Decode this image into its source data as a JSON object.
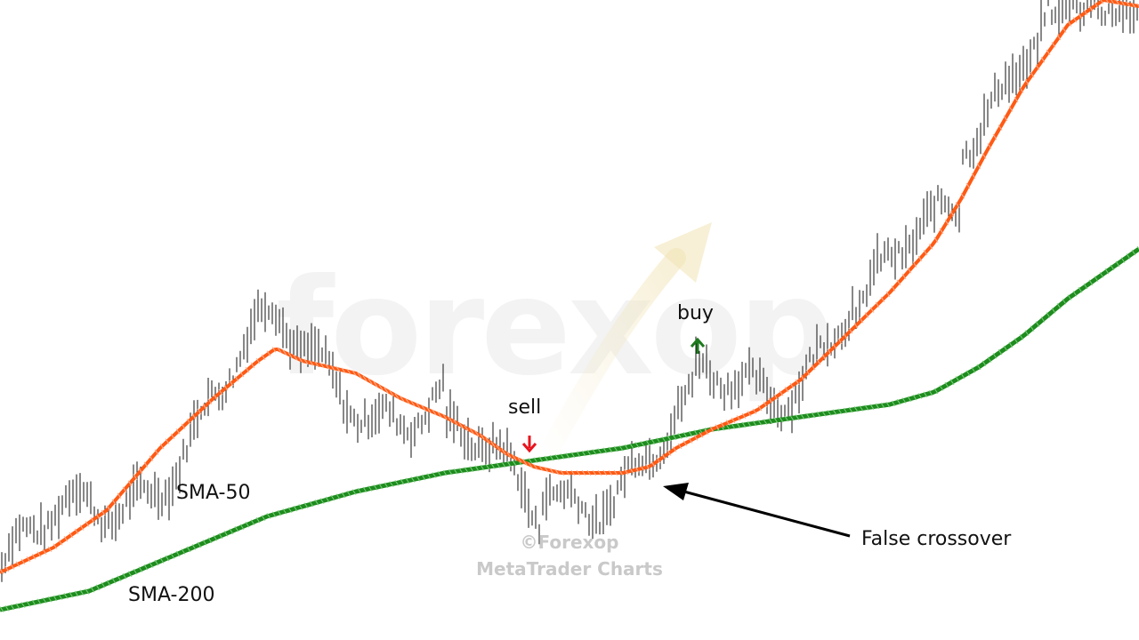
{
  "watermark": "forexop",
  "copyright": {
    "line1": "©Forexop",
    "line2": "MetaTrader Charts"
  },
  "labels": {
    "sma50": "SMA-50",
    "sma200": "SMA-200",
    "sell": "sell",
    "buy": "buy",
    "false_crossover": "False crossover"
  },
  "colors": {
    "sma50": "#ff5a14",
    "sma200": "#1e8c1e",
    "price": "#111111",
    "sell_arrow": "#e8141e",
    "buy_arrow": "#1e7a1e"
  },
  "chart_data": {
    "type": "line",
    "title": "",
    "xlabel": "",
    "ylabel": "",
    "x_range": [
      0,
      1280
    ],
    "y_range": [
      0,
      100
    ],
    "series": [
      {
        "name": "SMA-50",
        "x": [
          0,
          60,
          120,
          180,
          240,
          290,
          310,
          340,
          400,
          450,
          500,
          540,
          570,
          600,
          630,
          660,
          700,
          730,
          760,
          800,
          850,
          900,
          950,
          1000,
          1050,
          1080,
          1110,
          1150,
          1200,
          1240,
          1280
        ],
        "values": [
          8,
          12,
          18,
          28,
          36,
          42,
          44,
          42,
          40,
          36,
          33,
          30,
          27,
          25,
          24,
          24,
          24,
          25,
          28,
          31,
          34,
          39,
          46,
          53,
          61,
          68,
          76,
          86,
          96,
          100,
          99
        ]
      },
      {
        "name": "SMA-200",
        "x": [
          0,
          100,
          200,
          300,
          400,
          500,
          600,
          700,
          800,
          900,
          1000,
          1050,
          1100,
          1150,
          1200,
          1280
        ],
        "values": [
          2,
          5,
          11,
          17,
          21,
          24,
          26,
          28,
          31,
          33,
          35,
          37,
          41,
          46,
          52,
          60
        ]
      }
    ],
    "markers": [
      {
        "label": "sell",
        "x": 595,
        "direction": "down"
      },
      {
        "label": "buy",
        "x": 784,
        "direction": "up"
      }
    ],
    "annotation": {
      "text": "False crossover",
      "target_x": 745
    }
  }
}
